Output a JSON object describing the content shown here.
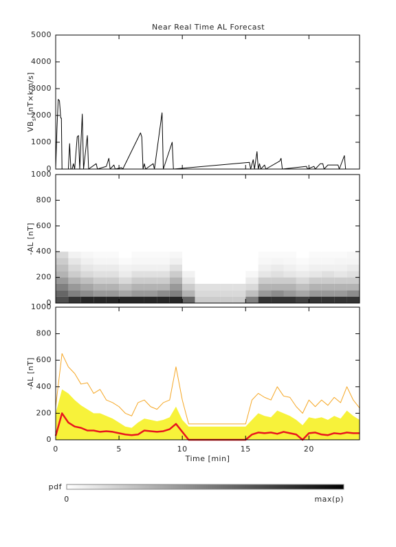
{
  "chart_data": [
    {
      "type": "line",
      "title": "Near Real Time AL Forecast",
      "ylabel": {
        "main": "VB",
        "sub": "s",
        "rest": " [nT×km/s]"
      },
      "xlim": [
        0,
        24
      ],
      "ylim": [
        0,
        5000
      ],
      "yticks": [
        0,
        1000,
        2000,
        3000,
        4000,
        5000
      ],
      "x": [
        0,
        0.1,
        0.2,
        0.3,
        0.4,
        0.45,
        0.5,
        1.0,
        1.1,
        1.2,
        1.3,
        1.4,
        1.5,
        1.7,
        1.8,
        1.9,
        2.1,
        2.2,
        2.5,
        2.6,
        3.2,
        3.3,
        4.0,
        4.2,
        4.3,
        4.6,
        4.7,
        5.2,
        5.3,
        6.7,
        6.8,
        6.9,
        7.0,
        7.1,
        7.7,
        7.8,
        8.4,
        8.5,
        9.2,
        9.3,
        15.3,
        15.4,
        15.6,
        15.7,
        15.9,
        16.0,
        16.1,
        16.2,
        16.5,
        16.6,
        17.7,
        17.8,
        17.9,
        19.8,
        19.9,
        20.4,
        20.5,
        20.9,
        21.1,
        21.2,
        21.5,
        22.3,
        22.4,
        22.8,
        22.9,
        24
      ],
      "series": [
        {
          "color": "#000000",
          "values": [
            0,
            1500,
            2600,
            2550,
            1900,
            1900,
            0,
            0,
            950,
            0,
            0,
            200,
            0,
            1200,
            1250,
            0,
            2050,
            0,
            1250,
            0,
            200,
            0,
            100,
            400,
            0,
            150,
            0,
            50,
            0,
            1350,
            1200,
            0,
            200,
            0,
            200,
            0,
            2100,
            0,
            1000,
            0,
            250,
            0,
            350,
            0,
            650,
            0,
            200,
            0,
            150,
            0,
            300,
            400,
            0,
            100,
            0,
            100,
            0,
            200,
            200,
            0,
            150,
            150,
            0,
            500,
            0,
            0
          ]
        }
      ]
    },
    {
      "type": "heatmap",
      "ylabel": {
        "main": "-AL [nT]"
      },
      "xlim": [
        0,
        24
      ],
      "ylim": [
        0,
        1000
      ],
      "yticks": [
        0,
        200,
        400,
        600,
        800,
        1000
      ],
      "xbins": [
        0,
        1,
        2,
        3,
        4,
        5,
        6,
        7,
        8,
        9,
        10,
        11,
        12,
        13,
        14,
        15,
        16,
        17,
        18,
        19,
        20,
        21,
        22,
        23,
        24
      ],
      "ybins": [
        0,
        50,
        100,
        150,
        200,
        250,
        300,
        350,
        400
      ],
      "z": [
        [
          0.7,
          0.6,
          0.5,
          0.4,
          0.3,
          0.25,
          0.2,
          0.15
        ],
        [
          0.8,
          0.5,
          0.4,
          0.3,
          0.2,
          0.15,
          0.1,
          0.05
        ],
        [
          0.85,
          0.45,
          0.35,
          0.25,
          0.15,
          0.1,
          0.06,
          0.03
        ],
        [
          0.85,
          0.4,
          0.3,
          0.2,
          0.12,
          0.08,
          0.04,
          0.02
        ],
        [
          0.85,
          0.4,
          0.3,
          0.2,
          0.12,
          0.08,
          0.04,
          0.02
        ],
        [
          0.85,
          0.35,
          0.25,
          0.15,
          0.08,
          0.05,
          0.02,
          0
        ],
        [
          0.85,
          0.4,
          0.3,
          0.2,
          0.12,
          0.06,
          0.03,
          0.02
        ],
        [
          0.85,
          0.4,
          0.3,
          0.2,
          0.12,
          0.06,
          0.03,
          0.02
        ],
        [
          0.85,
          0.45,
          0.3,
          0.2,
          0.12,
          0.06,
          0.03,
          0.02
        ],
        [
          0.85,
          0.5,
          0.4,
          0.3,
          0.2,
          0.12,
          0.06,
          0.03
        ],
        [
          0.6,
          0.3,
          0.2,
          0.1,
          0.05,
          0,
          0,
          0
        ],
        [
          0.2,
          0.15,
          0.12,
          0,
          0,
          0,
          0,
          0
        ],
        [
          0.2,
          0.15,
          0.12,
          0,
          0,
          0,
          0,
          0
        ],
        [
          0.2,
          0.15,
          0.12,
          0,
          0,
          0,
          0,
          0
        ],
        [
          0.2,
          0.15,
          0.12,
          0,
          0,
          0,
          0,
          0
        ],
        [
          0.5,
          0.25,
          0.15,
          0.08,
          0.03,
          0,
          0,
          0
        ],
        [
          0.8,
          0.4,
          0.3,
          0.2,
          0.1,
          0.06,
          0.03,
          0.02
        ],
        [
          0.8,
          0.45,
          0.3,
          0.2,
          0.12,
          0.08,
          0.04,
          0.02
        ],
        [
          0.8,
          0.4,
          0.3,
          0.2,
          0.1,
          0.06,
          0.03,
          0.02
        ],
        [
          0.75,
          0.35,
          0.25,
          0.15,
          0.08,
          0.04,
          0.02,
          0
        ],
        [
          0.8,
          0.4,
          0.3,
          0.2,
          0.1,
          0.06,
          0.03,
          0.02
        ],
        [
          0.8,
          0.4,
          0.3,
          0.2,
          0.12,
          0.06,
          0.03,
          0.02
        ],
        [
          0.8,
          0.4,
          0.3,
          0.2,
          0.1,
          0.06,
          0.04,
          0.02
        ],
        [
          0.8,
          0.45,
          0.3,
          0.2,
          0.12,
          0.08,
          0.04,
          0.03
        ]
      ]
    },
    {
      "type": "line",
      "ylabel": {
        "main": "-AL [nT]"
      },
      "xlabel": "Time [min]",
      "xlim": [
        0,
        24
      ],
      "xticks": [
        0,
        5,
        10,
        15,
        20
      ],
      "ylim": [
        0,
        1000
      ],
      "yticks": [
        0,
        200,
        400,
        600,
        800,
        1000
      ],
      "x": [
        0,
        0.5,
        1,
        1.5,
        2,
        2.5,
        3,
        3.5,
        4,
        4.5,
        5,
        5.5,
        6,
        6.5,
        7,
        7.5,
        8,
        8.5,
        9,
        9.5,
        10,
        10.5,
        11,
        11.5,
        12,
        12.5,
        13,
        13.5,
        14,
        14.5,
        15,
        15.5,
        16,
        16.5,
        17,
        17.5,
        18,
        18.5,
        19,
        19.5,
        20,
        20.5,
        21,
        21.5,
        22,
        22.5,
        23,
        23.5,
        24
      ],
      "series": [
        {
          "color": "#f7f23a",
          "fill": true,
          "values": [
            200,
            380,
            350,
            300,
            260,
            230,
            200,
            200,
            180,
            160,
            130,
            100,
            90,
            130,
            160,
            150,
            140,
            150,
            170,
            250,
            150,
            100,
            100,
            100,
            100,
            100,
            100,
            100,
            100,
            100,
            100,
            150,
            200,
            180,
            170,
            220,
            200,
            180,
            150,
            110,
            170,
            160,
            170,
            150,
            180,
            160,
            220,
            180,
            150
          ]
        },
        {
          "color": "#f5a623",
          "values": [
            250,
            650,
            550,
            500,
            420,
            430,
            350,
            380,
            300,
            280,
            250,
            200,
            180,
            280,
            300,
            250,
            230,
            280,
            300,
            550,
            300,
            120,
            120,
            120,
            120,
            120,
            120,
            120,
            120,
            120,
            120,
            300,
            350,
            320,
            300,
            400,
            330,
            320,
            250,
            200,
            300,
            250,
            300,
            260,
            320,
            280,
            400,
            300,
            240
          ]
        },
        {
          "color": "#e8141e",
          "width": 2.5,
          "values": [
            30,
            200,
            130,
            100,
            90,
            70,
            70,
            60,
            65,
            60,
            50,
            40,
            35,
            40,
            70,
            65,
            60,
            65,
            80,
            120,
            60,
            0,
            0,
            0,
            0,
            0,
            0,
            0,
            0,
            0,
            0,
            40,
            55,
            50,
            55,
            45,
            60,
            50,
            40,
            0,
            50,
            55,
            40,
            35,
            50,
            45,
            55,
            50,
            50
          ]
        }
      ]
    }
  ],
  "colorbar": {
    "label": "pdf",
    "min_label": "0",
    "max_label": "max(p)"
  }
}
